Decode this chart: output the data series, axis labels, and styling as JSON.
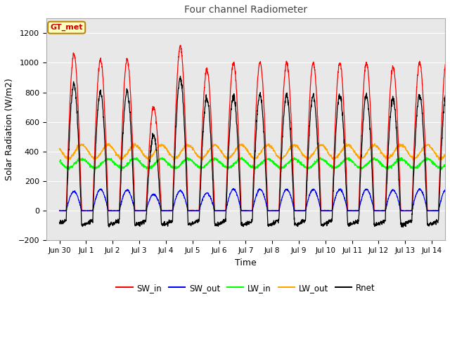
{
  "title": "Four channel Radiometer",
  "xlabel": "Time",
  "ylabel": "Solar Radiation (W/m2)",
  "ylim": [
    -200,
    1300
  ],
  "x_ticks_labels": [
    "Jun 30",
    "Jul 1",
    "Jul 2",
    "Jul 3",
    "Jul 4",
    "Jul 5",
    "Jul 6",
    "Jul 7",
    "Jul 8",
    "Jul 9",
    "Jul 10",
    "Jul 11",
    "Jul 12",
    "Jul 13",
    "Jul 14"
  ],
  "annotation_text": "GT_met",
  "annotation_color": "#CC0000",
  "annotation_bg": "#FFFFC0",
  "annotation_border": "#B8860B",
  "colors": {
    "SW_in": "#FF0000",
    "SW_out": "#0000FF",
    "LW_in": "#00FF00",
    "LW_out": "#FFA500",
    "Rnet": "#000000"
  },
  "fig_bg": "#FFFFFF",
  "plot_bg": "#E8E8E8",
  "grid_color": "#FFFFFF",
  "figsize": [
    6.4,
    4.8
  ],
  "dpi": 100,
  "yticks": [
    -200,
    0,
    200,
    400,
    600,
    800,
    1000,
    1200
  ],
  "peak_SW_in": [
    1060,
    1020,
    1020,
    700,
    1110,
    950,
    1000,
    1000,
    1000,
    1000,
    1000,
    1000,
    970,
    1000
  ],
  "peak_SW_out": [
    130,
    145,
    140,
    110,
    135,
    120,
    145,
    145,
    145,
    145,
    145,
    145,
    140,
    145
  ],
  "LW_in_base": 320,
  "LW_in_amp": 30,
  "LW_out_base": 400,
  "LW_out_amp": 45
}
